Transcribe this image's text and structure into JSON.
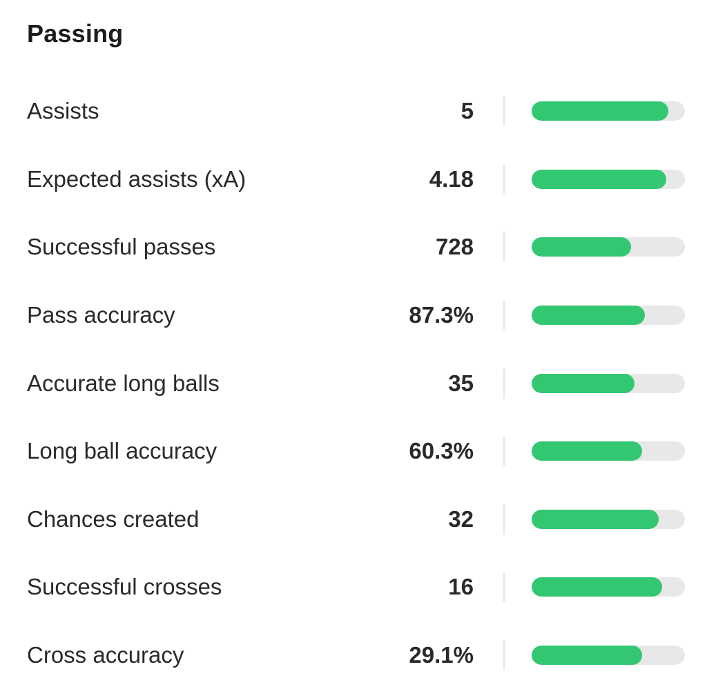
{
  "section": {
    "title": "Passing"
  },
  "colors": {
    "bar_fill": "#33c771",
    "bar_track": "#e8e8e8"
  },
  "stats": [
    {
      "label": "Assists",
      "value": "5",
      "bar_fraction": 0.89
    },
    {
      "label": "Expected assists (xA)",
      "value": "4.18",
      "bar_fraction": 0.88
    },
    {
      "label": "Successful passes",
      "value": "728",
      "bar_fraction": 0.65
    },
    {
      "label": "Pass accuracy",
      "value": "87.3%",
      "bar_fraction": 0.74
    },
    {
      "label": "Accurate long balls",
      "value": "35",
      "bar_fraction": 0.67
    },
    {
      "label": "Long ball accuracy",
      "value": "60.3%",
      "bar_fraction": 0.72
    },
    {
      "label": "Chances created",
      "value": "32",
      "bar_fraction": 0.83
    },
    {
      "label": "Successful crosses",
      "value": "16",
      "bar_fraction": 0.85
    },
    {
      "label": "Cross accuracy",
      "value": "29.1%",
      "bar_fraction": 0.72
    }
  ]
}
